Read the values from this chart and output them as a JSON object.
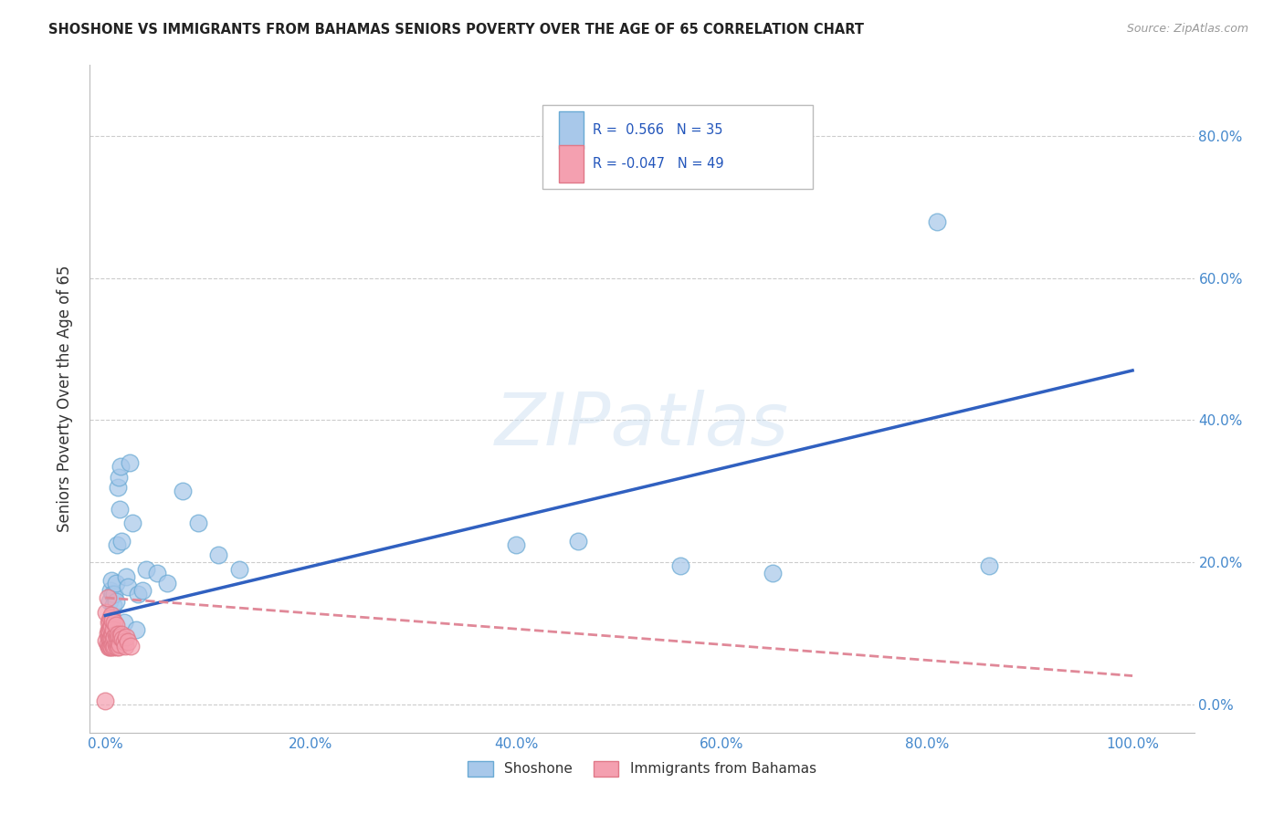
{
  "title": "SHOSHONE VS IMMIGRANTS FROM BAHAMAS SENIORS POVERTY OVER THE AGE OF 65 CORRELATION CHART",
  "source": "Source: ZipAtlas.com",
  "ylabel": "Seniors Poverty Over the Age of 65",
  "shoshone_color": "#a8c8ea",
  "shoshone_edge": "#6aaad4",
  "bahamas_color": "#f4a0b0",
  "bahamas_edge": "#e07888",
  "trendline_shoshone_color": "#3060c0",
  "trendline_bahamas_color": "#e08898",
  "background_color": "#ffffff",
  "grid_color": "#cccccc",
  "tick_color": "#4488cc",
  "title_color": "#222222",
  "ylabel_color": "#333333",
  "source_color": "#999999",
  "legend_text_color": "#2255bb",
  "shoshone_R": 0.566,
  "shoshone_N": 35,
  "bahamas_R": -0.047,
  "bahamas_N": 49,
  "x_ticks": [
    0.0,
    0.2,
    0.4,
    0.6,
    0.8,
    1.0
  ],
  "x_tick_labels": [
    "0.0%",
    "20.0%",
    "40.0%",
    "60.0%",
    "80.0%",
    "100.0%"
  ],
  "y_ticks": [
    0.0,
    0.2,
    0.4,
    0.6,
    0.8
  ],
  "y_tick_labels": [
    "0.0%",
    "20.0%",
    "40.0%",
    "60.0%",
    "80.0%"
  ],
  "xlim": [
    -0.015,
    1.06
  ],
  "ylim": [
    -0.04,
    0.9
  ],
  "shoshone_x": [
    0.004,
    0.005,
    0.006,
    0.007,
    0.008,
    0.009,
    0.01,
    0.01,
    0.011,
    0.012,
    0.013,
    0.014,
    0.015,
    0.016,
    0.018,
    0.02,
    0.022,
    0.024,
    0.026,
    0.03,
    0.032,
    0.036,
    0.04,
    0.05,
    0.06,
    0.075,
    0.09,
    0.11,
    0.13,
    0.4,
    0.46,
    0.56,
    0.65,
    0.81,
    0.86
  ],
  "shoshone_y": [
    0.145,
    0.16,
    0.175,
    0.155,
    0.14,
    0.155,
    0.145,
    0.17,
    0.225,
    0.305,
    0.32,
    0.275,
    0.335,
    0.23,
    0.115,
    0.18,
    0.165,
    0.34,
    0.255,
    0.105,
    0.155,
    0.16,
    0.19,
    0.185,
    0.17,
    0.3,
    0.255,
    0.21,
    0.19,
    0.225,
    0.23,
    0.195,
    0.185,
    0.68,
    0.195
  ],
  "bahamas_x": [
    0.0,
    0.001,
    0.001,
    0.002,
    0.002,
    0.002,
    0.003,
    0.003,
    0.003,
    0.003,
    0.004,
    0.004,
    0.004,
    0.004,
    0.005,
    0.005,
    0.005,
    0.005,
    0.006,
    0.006,
    0.006,
    0.006,
    0.007,
    0.007,
    0.007,
    0.008,
    0.008,
    0.008,
    0.009,
    0.009,
    0.009,
    0.01,
    0.01,
    0.01,
    0.011,
    0.011,
    0.012,
    0.012,
    0.013,
    0.013,
    0.014,
    0.015,
    0.016,
    0.017,
    0.018,
    0.019,
    0.02,
    0.022,
    0.025
  ],
  "bahamas_y": [
    0.005,
    0.09,
    0.13,
    0.085,
    0.1,
    0.15,
    0.08,
    0.095,
    0.105,
    0.115,
    0.08,
    0.092,
    0.103,
    0.118,
    0.082,
    0.094,
    0.108,
    0.122,
    0.08,
    0.093,
    0.11,
    0.125,
    0.085,
    0.098,
    0.118,
    0.08,
    0.092,
    0.105,
    0.082,
    0.095,
    0.115,
    0.085,
    0.098,
    0.112,
    0.08,
    0.095,
    0.085,
    0.098,
    0.08,
    0.095,
    0.085,
    0.095,
    0.098,
    0.092,
    0.088,
    0.082,
    0.095,
    0.088,
    0.082
  ],
  "trendline_sh_x0": 0.0,
  "trendline_sh_y0": 0.125,
  "trendline_sh_x1": 1.0,
  "trendline_sh_y1": 0.47,
  "trendline_bah_x0": 0.0,
  "trendline_bah_y0": 0.15,
  "trendline_bah_x1": 1.0,
  "trendline_bah_y1": 0.04,
  "watermark_text": "ZIPatlas",
  "watermark_color": "#c8ddf0",
  "watermark_alpha": 0.45,
  "legend_label_sh": "R =  0.566   N = 35",
  "legend_label_bah": "R = -0.047   N = 49",
  "bottom_legend_sh": "Shoshone",
  "bottom_legend_bah": "Immigrants from Bahamas",
  "marker_size": 180,
  "marker_alpha": 0.72
}
